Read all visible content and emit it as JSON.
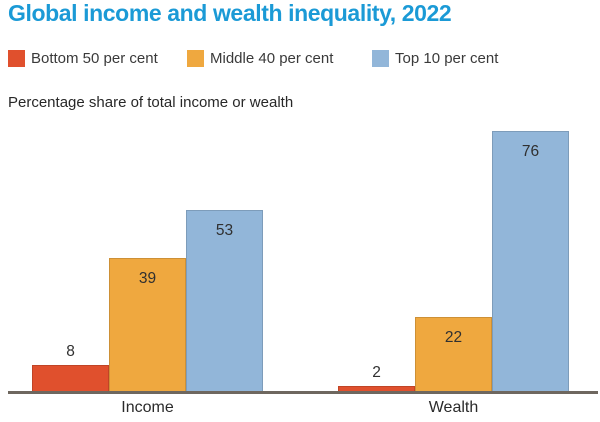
{
  "title": "Global income and wealth inequality, 2022",
  "subtitle": "Percentage share of total income or wealth",
  "legend": {
    "items": [
      {
        "label": "Bottom 50 per cent",
        "color": "#e0502d"
      },
      {
        "label": "Middle 40 per cent",
        "color": "#efa83f"
      },
      {
        "label": "Top 10 per cent",
        "color": "#92b6d9"
      }
    ]
  },
  "colors": {
    "title": "#1b9ad6",
    "axis_line": "#6e675f",
    "label_text": "#303030",
    "background": "#ffffff"
  },
  "chart_data": {
    "type": "bar",
    "categories": [
      "Income",
      "Wealth"
    ],
    "series": [
      {
        "name": "Bottom 50 per cent",
        "color": "#e0502d",
        "values": [
          8,
          2
        ]
      },
      {
        "name": "Middle 40 per cent",
        "color": "#efa83f",
        "values": [
          39,
          22
        ]
      },
      {
        "name": "Top 10 per cent",
        "color": "#92b6d9",
        "values": [
          53,
          76
        ]
      }
    ],
    "title": "Global income and wealth inequality, 2022",
    "xlabel": "",
    "ylabel": "Percentage share of total income or wealth",
    "ylim": [
      0,
      80
    ],
    "grid": false,
    "legend_position": "top",
    "value_labels": true
  }
}
